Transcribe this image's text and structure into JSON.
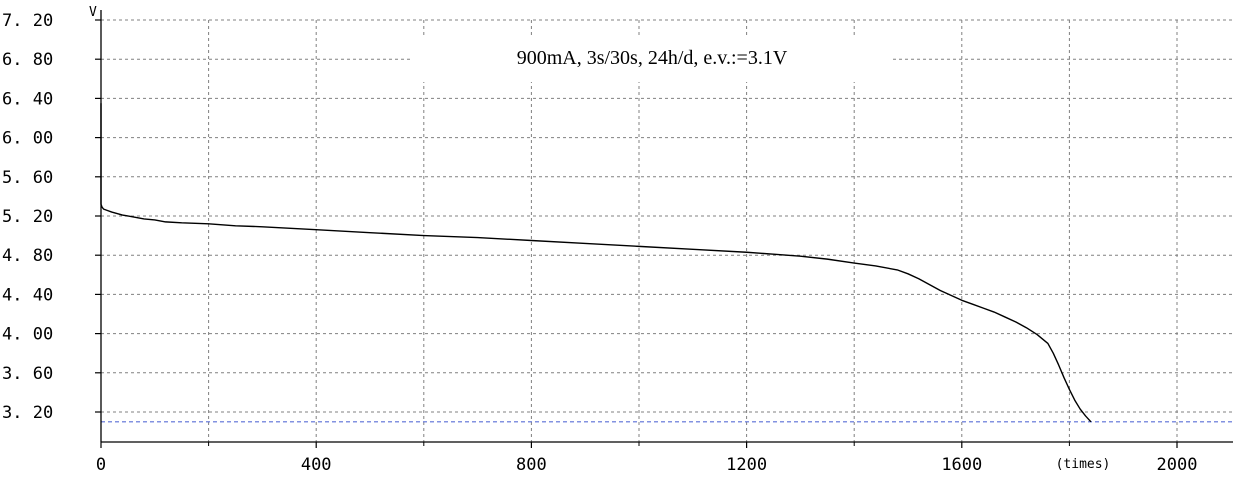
{
  "chart_data": {
    "type": "line",
    "title": "900mA, 3s/30s, 24h/d, e.v.:=3.1V",
    "xlabel": "(times)",
    "ylabel": "V",
    "xlim": [
      0,
      2000
    ],
    "ylim": [
      3.0,
      7.2
    ],
    "x_ticks": [
      0,
      400,
      800,
      1200,
      1600,
      2000
    ],
    "x_tick_labels": [
      "0",
      "400",
      "800",
      "1200",
      "1600",
      "2000"
    ],
    "y_ticks": [
      3.2,
      3.6,
      4.0,
      4.4,
      4.8,
      5.2,
      5.6,
      6.0,
      6.4,
      6.8,
      7.2
    ],
    "y_tick_labels": [
      "3.20",
      "3.60",
      "4.00",
      "4.40",
      "4.80",
      "5.20",
      "5.60",
      "6.00",
      "6.40",
      "6.80",
      "7.20"
    ],
    "grid": true,
    "cutoff_voltage": 3.1,
    "colors": {
      "series": "#000000",
      "grid": "#808080",
      "cutoff_line": "#5a6fd6",
      "axis": "#000000"
    },
    "series": [
      {
        "x": [
          0,
          0,
          2,
          5,
          10,
          20,
          40,
          60,
          80,
          100,
          120,
          150,
          200,
          250,
          300,
          400,
          500,
          600,
          700,
          800,
          900,
          1000,
          1100,
          1200,
          1250,
          1300,
          1350,
          1400,
          1440,
          1480,
          1500,
          1520,
          1540,
          1560,
          1580,
          1600,
          1620,
          1640,
          1660,
          1680,
          1700,
          1720,
          1740,
          1760,
          1770,
          1780,
          1790,
          1800,
          1810,
          1820,
          1830,
          1840
        ],
        "y": [
          6.35,
          5.32,
          5.29,
          5.27,
          5.26,
          5.24,
          5.21,
          5.19,
          5.17,
          5.16,
          5.14,
          5.13,
          5.12,
          5.1,
          5.09,
          5.06,
          5.03,
          5.0,
          4.98,
          4.95,
          4.92,
          4.89,
          4.86,
          4.83,
          4.81,
          4.79,
          4.76,
          4.72,
          4.69,
          4.65,
          4.61,
          4.56,
          4.5,
          4.44,
          4.39,
          4.34,
          4.3,
          4.26,
          4.22,
          4.17,
          4.12,
          4.06,
          3.99,
          3.9,
          3.8,
          3.68,
          3.55,
          3.43,
          3.32,
          3.23,
          3.16,
          3.1
        ]
      }
    ]
  }
}
